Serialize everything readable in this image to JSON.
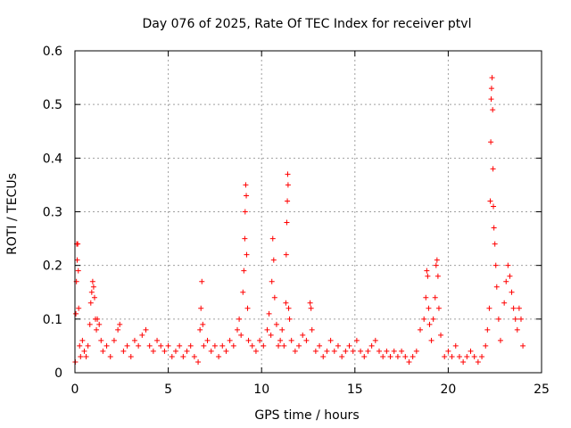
{
  "chart_data": {
    "type": "scatter",
    "title": "Day 076 of 2025, Rate Of TEC Index for receiver ptvl",
    "xlabel": "GPS time / hours",
    "ylabel": "ROTI / TECUs",
    "xlim": [
      0,
      25
    ],
    "ylim": [
      0,
      0.6
    ],
    "x_ticks": [
      "0",
      "5",
      "10",
      "15",
      "20",
      "25"
    ],
    "y_ticks": [
      "0",
      "0.1",
      "0.2",
      "0.3",
      "0.4",
      "0.5",
      "0.6"
    ],
    "grid": true,
    "marker": "+",
    "marker_color": "#ff0000",
    "series": [
      {
        "points": [
          [
            0.02,
            0.02
          ],
          [
            0.05,
            0.11
          ],
          [
            0.08,
            0.17
          ],
          [
            0.1,
            0.24
          ],
          [
            0.12,
            0.21
          ],
          [
            0.15,
            0.24
          ],
          [
            0.18,
            0.19
          ],
          [
            0.2,
            0.12
          ],
          [
            0.25,
            0.05
          ],
          [
            0.3,
            0.03
          ],
          [
            0.4,
            0.06
          ],
          [
            0.5,
            0.04
          ],
          [
            0.6,
            0.03
          ],
          [
            0.7,
            0.05
          ],
          [
            0.8,
            0.09
          ],
          [
            0.85,
            0.13
          ],
          [
            0.9,
            0.15
          ],
          [
            0.95,
            0.17
          ],
          [
            1.0,
            0.16
          ],
          [
            1.05,
            0.14
          ],
          [
            1.1,
            0.1
          ],
          [
            1.15,
            0.08
          ],
          [
            1.2,
            0.1
          ],
          [
            1.3,
            0.09
          ],
          [
            1.4,
            0.06
          ],
          [
            1.5,
            0.04
          ],
          [
            1.7,
            0.05
          ],
          [
            1.9,
            0.03
          ],
          [
            2.1,
            0.06
          ],
          [
            2.3,
            0.08
          ],
          [
            2.4,
            0.09
          ],
          [
            2.6,
            0.04
          ],
          [
            2.8,
            0.05
          ],
          [
            3.0,
            0.03
          ],
          [
            3.2,
            0.06
          ],
          [
            3.4,
            0.05
          ],
          [
            3.6,
            0.07
          ],
          [
            3.8,
            0.08
          ],
          [
            4.0,
            0.05
          ],
          [
            4.2,
            0.04
          ],
          [
            4.4,
            0.06
          ],
          [
            4.6,
            0.05
          ],
          [
            4.8,
            0.04
          ],
          [
            5.0,
            0.05
          ],
          [
            5.2,
            0.03
          ],
          [
            5.4,
            0.04
          ],
          [
            5.6,
            0.05
          ],
          [
            5.8,
            0.03
          ],
          [
            6.0,
            0.04
          ],
          [
            6.2,
            0.05
          ],
          [
            6.4,
            0.03
          ],
          [
            6.6,
            0.02
          ],
          [
            6.7,
            0.08
          ],
          [
            6.75,
            0.12
          ],
          [
            6.8,
            0.17
          ],
          [
            6.85,
            0.09
          ],
          [
            6.9,
            0.05
          ],
          [
            7.1,
            0.06
          ],
          [
            7.3,
            0.04
          ],
          [
            7.5,
            0.05
          ],
          [
            7.7,
            0.03
          ],
          [
            7.9,
            0.05
          ],
          [
            8.1,
            0.04
          ],
          [
            8.3,
            0.06
          ],
          [
            8.5,
            0.05
          ],
          [
            8.7,
            0.08
          ],
          [
            8.8,
            0.1
          ],
          [
            8.9,
            0.07
          ],
          [
            9.0,
            0.15
          ],
          [
            9.05,
            0.19
          ],
          [
            9.1,
            0.25
          ],
          [
            9.12,
            0.3
          ],
          [
            9.15,
            0.35
          ],
          [
            9.18,
            0.33
          ],
          [
            9.2,
            0.22
          ],
          [
            9.25,
            0.12
          ],
          [
            9.3,
            0.06
          ],
          [
            9.5,
            0.05
          ],
          [
            9.7,
            0.04
          ],
          [
            9.9,
            0.06
          ],
          [
            10.1,
            0.05
          ],
          [
            10.3,
            0.08
          ],
          [
            10.4,
            0.11
          ],
          [
            10.5,
            0.07
          ],
          [
            10.55,
            0.17
          ],
          [
            10.6,
            0.25
          ],
          [
            10.65,
            0.21
          ],
          [
            10.7,
            0.14
          ],
          [
            10.8,
            0.09
          ],
          [
            10.9,
            0.05
          ],
          [
            11.0,
            0.06
          ],
          [
            11.1,
            0.08
          ],
          [
            11.2,
            0.05
          ],
          [
            11.3,
            0.13
          ],
          [
            11.32,
            0.22
          ],
          [
            11.35,
            0.28
          ],
          [
            11.38,
            0.32
          ],
          [
            11.4,
            0.37
          ],
          [
            11.42,
            0.35
          ],
          [
            11.45,
            0.12
          ],
          [
            11.5,
            0.1
          ],
          [
            11.6,
            0.06
          ],
          [
            11.8,
            0.04
          ],
          [
            12.0,
            0.05
          ],
          [
            12.2,
            0.07
          ],
          [
            12.4,
            0.06
          ],
          [
            12.6,
            0.13
          ],
          [
            12.65,
            0.12
          ],
          [
            12.7,
            0.08
          ],
          [
            12.9,
            0.04
          ],
          [
            13.1,
            0.05
          ],
          [
            13.3,
            0.03
          ],
          [
            13.5,
            0.04
          ],
          [
            13.7,
            0.06
          ],
          [
            13.9,
            0.04
          ],
          [
            14.1,
            0.05
          ],
          [
            14.3,
            0.03
          ],
          [
            14.5,
            0.04
          ],
          [
            14.7,
            0.05
          ],
          [
            14.9,
            0.04
          ],
          [
            15.1,
            0.06
          ],
          [
            15.3,
            0.04
          ],
          [
            15.5,
            0.03
          ],
          [
            15.7,
            0.04
          ],
          [
            15.9,
            0.05
          ],
          [
            16.1,
            0.06
          ],
          [
            16.3,
            0.04
          ],
          [
            16.5,
            0.03
          ],
          [
            16.7,
            0.04
          ],
          [
            16.9,
            0.03
          ],
          [
            17.1,
            0.04
          ],
          [
            17.3,
            0.03
          ],
          [
            17.5,
            0.04
          ],
          [
            17.7,
            0.03
          ],
          [
            17.9,
            0.02
          ],
          [
            18.1,
            0.03
          ],
          [
            18.3,
            0.04
          ],
          [
            18.5,
            0.08
          ],
          [
            18.7,
            0.1
          ],
          [
            18.8,
            0.14
          ],
          [
            18.85,
            0.19
          ],
          [
            18.9,
            0.18
          ],
          [
            18.95,
            0.12
          ],
          [
            19.0,
            0.09
          ],
          [
            19.1,
            0.06
          ],
          [
            19.2,
            0.1
          ],
          [
            19.3,
            0.14
          ],
          [
            19.35,
            0.2
          ],
          [
            19.4,
            0.21
          ],
          [
            19.45,
            0.18
          ],
          [
            19.5,
            0.12
          ],
          [
            19.6,
            0.07
          ],
          [
            19.8,
            0.03
          ],
          [
            20.0,
            0.04
          ],
          [
            20.2,
            0.03
          ],
          [
            20.4,
            0.05
          ],
          [
            20.6,
            0.03
          ],
          [
            20.8,
            0.02
          ],
          [
            21.0,
            0.03
          ],
          [
            21.2,
            0.04
          ],
          [
            21.4,
            0.03
          ],
          [
            21.6,
            0.02
          ],
          [
            21.8,
            0.03
          ],
          [
            22.0,
            0.05
          ],
          [
            22.1,
            0.08
          ],
          [
            22.2,
            0.12
          ],
          [
            22.25,
            0.32
          ],
          [
            22.28,
            0.43
          ],
          [
            22.3,
            0.51
          ],
          [
            22.32,
            0.53
          ],
          [
            22.35,
            0.55
          ],
          [
            22.38,
            0.49
          ],
          [
            22.4,
            0.38
          ],
          [
            22.42,
            0.31
          ],
          [
            22.45,
            0.27
          ],
          [
            22.5,
            0.24
          ],
          [
            22.55,
            0.2
          ],
          [
            22.6,
            0.16
          ],
          [
            22.7,
            0.1
          ],
          [
            22.8,
            0.06
          ],
          [
            23.0,
            0.13
          ],
          [
            23.1,
            0.17
          ],
          [
            23.2,
            0.2
          ],
          [
            23.3,
            0.18
          ],
          [
            23.4,
            0.15
          ],
          [
            23.5,
            0.12
          ],
          [
            23.6,
            0.1
          ],
          [
            23.7,
            0.08
          ],
          [
            23.8,
            0.12
          ],
          [
            23.9,
            0.1
          ],
          [
            24.0,
            0.05
          ]
        ]
      }
    ]
  }
}
